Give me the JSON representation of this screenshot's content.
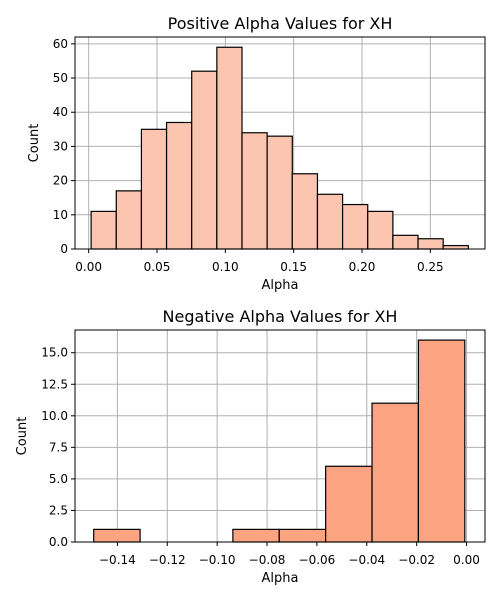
{
  "chart_data": [
    {
      "type": "bar",
      "title": "Positive Alpha Values for XH",
      "xlabel": "Alpha",
      "ylabel": "Count",
      "bar_color": "#fcc5b0",
      "grid": true,
      "xlim": [
        -0.01,
        0.29
      ],
      "ylim": [
        0,
        62
      ],
      "xticks": [
        0.0,
        0.05,
        0.1,
        0.15,
        0.2,
        0.25
      ],
      "xtick_labels": [
        "0.00",
        "0.05",
        "0.10",
        "0.15",
        "0.20",
        "0.25"
      ],
      "yticks": [
        0,
        10,
        20,
        30,
        40,
        50,
        60
      ],
      "ytick_labels": [
        "0",
        "10",
        "20",
        "30",
        "40",
        "50",
        "60"
      ],
      "bins": [
        {
          "x0": 0.0018,
          "x1": 0.0202,
          "value": 11
        },
        {
          "x0": 0.0202,
          "x1": 0.0386,
          "value": 17
        },
        {
          "x0": 0.0386,
          "x1": 0.057,
          "value": 35
        },
        {
          "x0": 0.057,
          "x1": 0.0754,
          "value": 37
        },
        {
          "x0": 0.0754,
          "x1": 0.0938,
          "value": 52
        },
        {
          "x0": 0.0938,
          "x1": 0.1122,
          "value": 59
        },
        {
          "x0": 0.1122,
          "x1": 0.1306,
          "value": 34
        },
        {
          "x0": 0.1306,
          "x1": 0.149,
          "value": 33
        },
        {
          "x0": 0.149,
          "x1": 0.1674,
          "value": 22
        },
        {
          "x0": 0.1674,
          "x1": 0.1858,
          "value": 16
        },
        {
          "x0": 0.1858,
          "x1": 0.2042,
          "value": 13
        },
        {
          "x0": 0.2042,
          "x1": 0.2226,
          "value": 11
        },
        {
          "x0": 0.2226,
          "x1": 0.241,
          "value": 4
        },
        {
          "x0": 0.241,
          "x1": 0.2594,
          "value": 3
        },
        {
          "x0": 0.2594,
          "x1": 0.2778,
          "value": 1
        }
      ]
    },
    {
      "type": "bar",
      "title": "Negative Alpha Values for XH",
      "xlabel": "Alpha",
      "ylabel": "Count",
      "bar_color": "#fca482",
      "grid": true,
      "xlim": [
        -0.157,
        0.0074
      ],
      "ylim": [
        0,
        16.8
      ],
      "xticks": [
        -0.14,
        -0.12,
        -0.1,
        -0.08,
        -0.06,
        -0.04,
        -0.02,
        0.0
      ],
      "xtick_labels": [
        "−0.14",
        "−0.12",
        "−0.10",
        "−0.08",
        "−0.06",
        "−0.04",
        "−0.02",
        "0.00"
      ],
      "yticks": [
        0,
        2.5,
        5,
        7.5,
        10,
        12.5,
        15
      ],
      "ytick_labels": [
        "0.0",
        "2.5",
        "5.0",
        "7.5",
        "10.0",
        "12.5",
        "15.0"
      ],
      "bins": [
        {
          "x0": -0.1495,
          "x1": -0.1309,
          "value": 1
        },
        {
          "x0": -0.1309,
          "x1": -0.1123,
          "value": 0
        },
        {
          "x0": -0.1123,
          "x1": -0.0937,
          "value": 0
        },
        {
          "x0": -0.0937,
          "x1": -0.0751,
          "value": 1
        },
        {
          "x0": -0.0751,
          "x1": -0.0565,
          "value": 1
        },
        {
          "x0": -0.0565,
          "x1": -0.0379,
          "value": 6
        },
        {
          "x0": -0.0379,
          "x1": -0.0193,
          "value": 11
        },
        {
          "x0": -0.0193,
          "x1": -0.0007,
          "value": 16
        }
      ]
    }
  ]
}
